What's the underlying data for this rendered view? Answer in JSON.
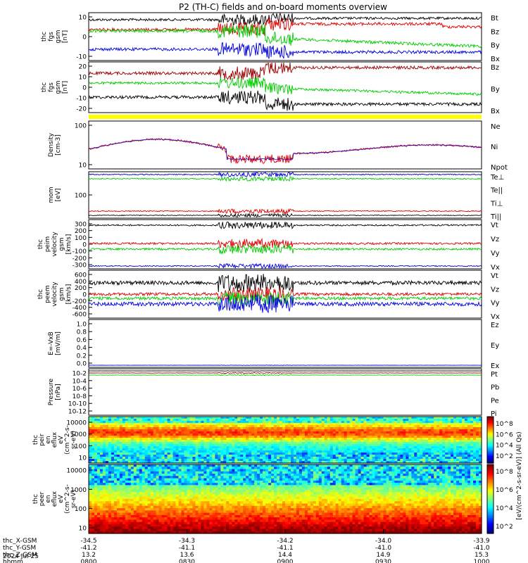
{
  "title": "P2 (TH-C) fields and on-board moments overview",
  "colors": {
    "black": "#000000",
    "red": "#e00000",
    "green": "#00cc00",
    "blue": "#0000e0",
    "darkred": "#9b0000",
    "yellow": "#ffff00"
  },
  "chart_data": {
    "type": "line",
    "x_range": [
      "08:00",
      "10:00"
    ],
    "time_ticks": [
      "0800",
      "0830",
      "0900",
      "0930",
      "1000"
    ],
    "panels": [
      {
        "ylabel": [
          "thc",
          "fgs",
          "gsm",
          "[nT]"
        ],
        "yticks": [
          "10",
          "0",
          "-10"
        ],
        "series": [
          {
            "name": "Bt",
            "color": "black"
          },
          {
            "name": "Bz",
            "color": "red"
          },
          {
            "name": "By",
            "color": "green"
          },
          {
            "name": "Bx",
            "color": "blue"
          }
        ]
      },
      {
        "ylabel": [
          "thc",
          "fgs",
          "gsm",
          "[nT]"
        ],
        "yticks": [
          "20",
          "10",
          "0",
          "-10",
          "-20"
        ],
        "series": [
          {
            "name": "Bz",
            "color": "darkred"
          },
          {
            "name": "By",
            "color": "green"
          },
          {
            "name": "Bx",
            "color": "black"
          }
        ]
      },
      {
        "ylabel": [
          "Density",
          "[cm-3]"
        ],
        "yticks": [
          "100",
          "10"
        ],
        "series": [
          {
            "name": "Ne",
            "color": "red"
          },
          {
            "name": "Ni",
            "color": "black"
          },
          {
            "name": "Npot",
            "color": "blue"
          }
        ]
      },
      {
        "ylabel": [
          "mom",
          "[eV]"
        ],
        "yticks": [
          "100"
        ],
        "series": [
          {
            "name": "Te⊥",
            "color": "red"
          },
          {
            "name": "Te||",
            "color": "black"
          },
          {
            "name": "Ti⊥",
            "color": "blue"
          },
          {
            "name": "Ti||",
            "color": "green"
          }
        ]
      },
      {
        "ylabel": [
          "thc",
          "peim",
          "velocity",
          "gsm",
          "[km/s]"
        ],
        "yticks": [
          "300",
          "200",
          "100",
          "0",
          "-100",
          "-200",
          "-300"
        ],
        "series": [
          {
            "name": "Vt",
            "color": "black"
          },
          {
            "name": "Vz",
            "color": "red"
          },
          {
            "name": "Vy",
            "color": "green"
          },
          {
            "name": "Vx",
            "color": "blue"
          }
        ]
      },
      {
        "ylabel": [
          "thc",
          "peem",
          "velocity",
          "gsm",
          "[km/s]"
        ],
        "yticks": [
          "600",
          "400",
          "200",
          "0",
          "-200",
          "-400",
          "-600"
        ],
        "series": [
          {
            "name": "Vt",
            "color": "black"
          },
          {
            "name": "Vz",
            "color": "red"
          },
          {
            "name": "Vy",
            "color": "green"
          },
          {
            "name": "Vx",
            "color": "blue"
          }
        ]
      },
      {
        "ylabel": [
          "E=-VxB",
          "[mV/m]"
        ],
        "yticks": [
          "1.0",
          "0.8",
          "0.6",
          "0.4",
          "0.2",
          "0.0"
        ],
        "series": [
          {
            "name": "Ez",
            "color": "red"
          },
          {
            "name": "Ey",
            "color": "green"
          },
          {
            "name": "Ex",
            "color": "blue"
          }
        ]
      },
      {
        "ylabel": [
          "Pressure",
          "[nPa]"
        ],
        "yticks": [
          "10-2",
          "10-4",
          "10-6",
          "10-8",
          "10-10",
          "10-12"
        ],
        "series": [
          {
            "name": "Pt",
            "color": "black"
          },
          {
            "name": "Pb",
            "color": "darkred"
          },
          {
            "name": "Pe",
            "color": "green"
          },
          {
            "name": "Pi",
            "color": "blue"
          }
        ]
      }
    ],
    "spectrograms": [
      {
        "ylabel": [
          "thc",
          "peir",
          "en",
          "eflux",
          "eV",
          "(cm^2-s-",
          "sr-eV)"
        ],
        "yticks": [
          "10000",
          "1000",
          "100",
          "10"
        ]
      },
      {
        "ylabel": [
          "thc",
          "peer",
          "en",
          "eflux",
          "eV",
          "(cm^2-s-",
          "sr-eV)"
        ],
        "yticks": [
          "10000",
          "1000",
          "100",
          "10"
        ]
      }
    ],
    "colorbar": {
      "label": "[eV/(cm^2-s-sr-eV)] (All Qs)",
      "ticks_top": [
        "10^8",
        "10^6",
        "10^4",
        "10^2"
      ],
      "ticks_bottom": [
        "10^8",
        "10^6",
        "10^4",
        "10^2"
      ]
    },
    "footer": {
      "rows": [
        {
          "label": "thc_X-GSM",
          "values": [
            "-34.5",
            "-34.3",
            "-34.2",
            "-34.0",
            "-33.9"
          ]
        },
        {
          "label": "thc_Y-GSM",
          "values": [
            "-41.2",
            "-41.1",
            "-41.1",
            "-41.0",
            "-41.0"
          ]
        },
        {
          "label": "thc_Z-GSM",
          "values": [
            "13.2",
            "13.6",
            "14.4",
            "14.9",
            "15.3"
          ]
        },
        {
          "label": "hhmm",
          "values": [
            "0800",
            "0830",
            "0900",
            "0930",
            "1000"
          ]
        }
      ],
      "date": "2024 Jul 25"
    }
  }
}
